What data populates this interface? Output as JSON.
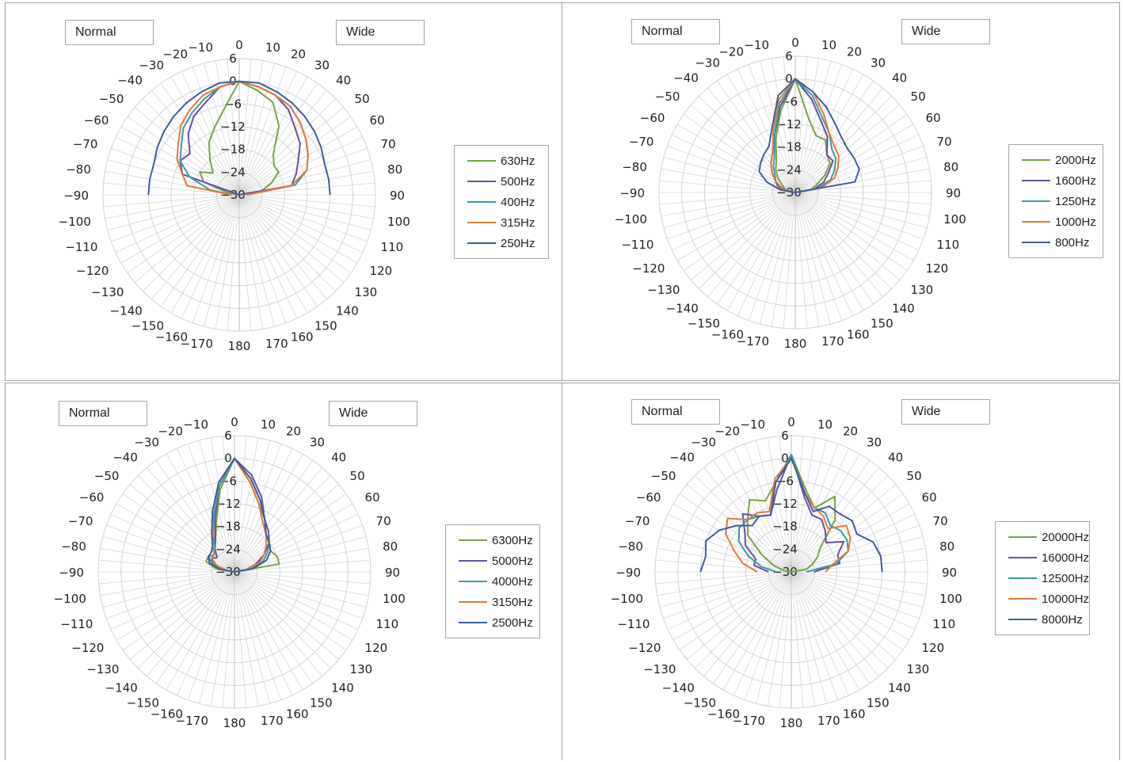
{
  "angle_labels": [
    "0",
    "10",
    "20",
    "30",
    "40",
    "50",
    "60",
    "70",
    "80",
    "90",
    "100",
    "110",
    "120",
    "130",
    "140",
    "150",
    "160",
    "170",
    "180",
    "−10",
    "−20",
    "−30",
    "−40",
    "−50",
    "−60",
    "−70",
    "−80",
    "−90",
    "−100",
    "−110",
    "−120",
    "−130",
    "−140",
    "−150",
    "−160",
    "−170"
  ],
  "ring_labels": [
    "6",
    "0",
    "−6",
    "−12",
    "−18",
    "−24",
    "−30"
  ],
  "panels": [
    {
      "normal_label": "Normal",
      "wide_label": "Wide",
      "chart_data": {
        "type": "polar-line",
        "angle_unit": "degrees",
        "r_range": [
          -30,
          6
        ],
        "series": [
          {
            "name": "630Hz",
            "color": "#77a344",
            "angles": [
              -90,
              -80,
              -70,
              -60,
              -50,
              -40,
              -30,
              -20,
              -10,
              0,
              10,
              20,
              30,
              40,
              50,
              60,
              70,
              80,
              90
            ],
            "values": [
              -30,
              -27,
              -20,
              -18,
              -21,
              -18,
              -14,
              -11,
              -7,
              0,
              -2,
              -4,
              -9,
              -16,
              -18,
              -18,
              -21,
              -24,
              -30
            ]
          },
          {
            "name": "500Hz",
            "color": "#6a4f9d",
            "angles": [
              -90,
              -80,
              -70,
              -60,
              -50,
              -40,
              -30,
              -20,
              -10,
              0,
              10,
              20,
              30,
              40,
              50,
              60,
              70,
              80,
              90
            ],
            "values": [
              -30,
              -30,
              -14,
              -12,
              -13,
              -9,
              -6,
              -4,
              -1,
              0,
              -1,
              -2,
              -4,
              -7,
              -9,
              -12,
              -14,
              -16,
              -30
            ]
          },
          {
            "name": "400Hz",
            "color": "#3b9aa8",
            "angles": [
              -90,
              -80,
              -70,
              -60,
              -50,
              -40,
              -30,
              -20,
              -10,
              0,
              10,
              20,
              30,
              40,
              50,
              60,
              70,
              80,
              90
            ],
            "values": [
              -28,
              -22,
              -16,
              -12,
              -10,
              -7,
              -5,
              -3,
              -1,
              0,
              -1,
              -2,
              -3,
              -5,
              -7,
              -9,
              -11,
              -15,
              -28
            ]
          },
          {
            "name": "315Hz",
            "color": "#e07b39",
            "angles": [
              -90,
              -80,
              -70,
              -60,
              -50,
              -40,
              -30,
              -20,
              -10,
              0,
              10,
              20,
              30,
              40,
              50,
              60,
              70,
              80,
              90
            ],
            "values": [
              -28,
              -16,
              -14,
              -11,
              -9,
              -6,
              -4,
              -2,
              -1,
              0,
              -1,
              -2,
              -3,
              -5,
              -7,
              -9,
              -11,
              -16,
              -28
            ]
          },
          {
            "name": "250Hz",
            "color": "#3d5e9c",
            "angles": [
              -90,
              -80,
              -70,
              -60,
              -50,
              -40,
              -30,
              -20,
              -10,
              0,
              10,
              20,
              30,
              40,
              50,
              60,
              70,
              80,
              90
            ],
            "values": [
              -6,
              -6,
              -6,
              -5,
              -4,
              -3,
              -2,
              -1,
              0,
              0,
              0,
              -1,
              -2,
              -3,
              -4,
              -5,
              -6,
              -6,
              -6
            ]
          }
        ]
      }
    },
    {
      "normal_label": "Normal",
      "wide_label": "Wide",
      "chart_data": {
        "type": "polar-line",
        "angle_unit": "degrees",
        "r_range": [
          -30,
          6
        ],
        "series": [
          {
            "name": "2000Hz",
            "color": "#77a344",
            "angles": [
              -90,
              -80,
              -70,
              -60,
              -50,
              -40,
              -30,
              -20,
              -10,
              0,
              10,
              20,
              30,
              40,
              50,
              60,
              70,
              80,
              90
            ],
            "values": [
              -30,
              -29,
              -27,
              -26,
              -24,
              -22,
              -20,
              -15,
              -8,
              0,
              -10,
              -14,
              -14,
              -17,
              -18,
              -21,
              -24,
              -26,
              -30
            ]
          },
          {
            "name": "1600Hz",
            "color": "#6a4f9d",
            "angles": [
              -90,
              -80,
              -70,
              -60,
              -50,
              -40,
              -30,
              -20,
              -10,
              0,
              10,
              20,
              30,
              40,
              50,
              60,
              70,
              80,
              90
            ],
            "values": [
              -30,
              -27,
              -25,
              -24,
              -22,
              -20,
              -18,
              -14,
              -7,
              0,
              -5,
              -10,
              -13,
              -17,
              -17,
              -20,
              -22,
              -25,
              -30
            ]
          },
          {
            "name": "1250Hz",
            "color": "#3b9aa8",
            "angles": [
              -90,
              -80,
              -70,
              -60,
              -50,
              -40,
              -30,
              -20,
              -10,
              0,
              10,
              20,
              30,
              40,
              50,
              60,
              70,
              80,
              90
            ],
            "values": [
              -30,
              -29,
              -26,
              -24,
              -23,
              -21,
              -19,
              -14,
              -6,
              0,
              -4,
              -9,
              -12,
              -15,
              -16,
              -18,
              -20,
              -24,
              -30
            ]
          },
          {
            "name": "1000Hz",
            "color": "#e07b39",
            "angles": [
              -90,
              -80,
              -70,
              -60,
              -50,
              -40,
              -30,
              -20,
              -10,
              0,
              10,
              20,
              30,
              40,
              50,
              60,
              70,
              80,
              90
            ],
            "values": [
              -30,
              -28,
              -26,
              -24,
              -22,
              -20,
              -18,
              -13,
              -5,
              0,
              -3,
              -8,
              -12,
              -14,
              -15,
              -17,
              -19,
              -23,
              -30
            ]
          },
          {
            "name": "800Hz",
            "color": "#3d5e9c",
            "angles": [
              -90,
              -80,
              -70,
              -60,
              -50,
              -40,
              -30,
              -20,
              -10,
              0,
              10,
              20,
              30,
              40,
              50,
              60,
              70,
              80,
              90
            ],
            "values": [
              -30,
              -26,
              -22,
              -19,
              -18,
              -17,
              -16,
              -12,
              -4,
              0,
              -3,
              -6,
              -9,
              -11,
              -12,
              -12,
              -12,
              -14,
              -30
            ]
          }
        ]
      }
    },
    {
      "normal_label": "Normal",
      "wide_label": "Wide",
      "chart_data": {
        "type": "polar-line",
        "angle_unit": "degrees",
        "r_range": [
          -30,
          6
        ],
        "series": [
          {
            "name": "6300Hz",
            "color": "#77a344",
            "angles": [
              -90,
              -80,
              -70,
              -60,
              -50,
              -40,
              -30,
              -20,
              -10,
              0,
              10,
              20,
              30,
              40,
              50,
              60,
              70,
              80,
              90
            ],
            "values": [
              -30,
              -25,
              -22,
              -22,
              -23,
              -22,
              -20,
              -16,
              -8,
              0,
              -6,
              -11,
              -14,
              -17,
              -18,
              -19,
              -18,
              -18,
              -30
            ]
          },
          {
            "name": "5000Hz",
            "color": "#6a4f9d",
            "angles": [
              -90,
              -80,
              -70,
              -60,
              -50,
              -40,
              -30,
              -20,
              -10,
              0,
              10,
              20,
              30,
              40,
              50,
              60,
              70,
              80,
              90
            ],
            "values": [
              -30,
              -28,
              -24,
              -23,
              -24,
              -22,
              -20,
              -15,
              -7,
              0,
              -4,
              -9,
              -14,
              -16,
              -18,
              -21,
              -24,
              -27,
              -30
            ]
          },
          {
            "name": "4000Hz",
            "color": "#3b9aa8",
            "angles": [
              -90,
              -80,
              -70,
              -60,
              -50,
              -40,
              -30,
              -20,
              -10,
              0,
              10,
              20,
              30,
              40,
              50,
              60,
              70,
              80,
              90
            ],
            "values": [
              -30,
              -27,
              -24,
              -22,
              -23,
              -22,
              -19,
              -14,
              -7,
              0,
              -5,
              -10,
              -14,
              -17,
              -18,
              -20,
              -22,
              -26,
              -30
            ]
          },
          {
            "name": "3150Hz",
            "color": "#e07b39",
            "angles": [
              -90,
              -80,
              -70,
              -60,
              -50,
              -40,
              -30,
              -20,
              -10,
              0,
              10,
              20,
              30,
              40,
              50,
              60,
              70,
              80,
              90
            ],
            "values": [
              -30,
              -28,
              -25,
              -23,
              -23,
              -21,
              -19,
              -13,
              -6,
              0,
              -6,
              -11,
              -15,
              -17,
              -19,
              -21,
              -23,
              -27,
              -30
            ]
          },
          {
            "name": "2500Hz",
            "color": "#3d5e9c",
            "angles": [
              -90,
              -80,
              -70,
              -60,
              -50,
              -40,
              -30,
              -20,
              -10,
              0,
              10,
              20,
              30,
              40,
              50,
              60,
              70,
              80,
              90
            ],
            "values": [
              -30,
              -26,
              -23,
              -22,
              -22,
              -21,
              -18,
              -13,
              -6,
              0,
              -5,
              -10,
              -14,
              -17,
              -18,
              -19,
              -21,
              -25,
              -30
            ]
          }
        ]
      }
    },
    {
      "normal_label": "Normal",
      "wide_label": "Wide",
      "chart_data": {
        "type": "polar-line",
        "angle_unit": "degrees",
        "r_range": [
          -30,
          6
        ],
        "series": [
          {
            "name": "20000Hz",
            "color": "#77a344",
            "angles": [
              -90,
              -80,
              -70,
              -60,
              -50,
              -40,
              -30,
              -20,
              -10,
              0,
              10,
              20,
              30,
              40,
              50,
              60,
              70,
              80,
              90
            ],
            "values": [
              -30,
              -28,
              -25,
              -21,
              -15,
              -12,
              -8,
              -10,
              -6,
              1,
              -8,
              -12,
              -7,
              -12,
              -20,
              -22,
              -24,
              -26,
              -30
            ]
          },
          {
            "name": "16000Hz",
            "color": "#6a4f9d",
            "angles": [
              -90,
              -80,
              -70,
              -60,
              -50,
              -40,
              -30,
              -20,
              -10,
              0,
              10,
              20,
              30,
              40,
              50,
              60,
              70,
              80,
              90
            ],
            "values": [
              -24,
              -20,
              -20,
              -16,
              -14,
              -10,
              -13,
              -14,
              -8,
              1,
              -10,
              -14,
              -14,
              -16,
              -18,
              -14,
              -17,
              -17,
              -24
            ]
          },
          {
            "name": "12500Hz",
            "color": "#3b9aa8",
            "angles": [
              -90,
              -80,
              -70,
              -60,
              -50,
              -40,
              -30,
              -20,
              -10,
              0,
              10,
              20,
              30,
              40,
              50,
              60,
              70,
              80,
              90
            ],
            "values": [
              -26,
              -22,
              -18,
              -14,
              -12,
              -12,
              -13,
              -14,
              -6,
              1,
              -9,
              -12,
              -12,
              -14,
              -13,
              -13,
              -14,
              -18,
              -26
            ]
          },
          {
            "name": "10000Hz",
            "color": "#e07b39",
            "angles": [
              -90,
              -80,
              -70,
              -60,
              -50,
              -40,
              -30,
              -20,
              -10,
              0,
              10,
              20,
              30,
              40,
              50,
              60,
              70,
              80,
              90
            ],
            "values": [
              -21,
              -17,
              -14,
              -10,
              -8,
              -12,
              -12,
              -13,
              -5,
              0,
              -9,
              -12,
              -13,
              -15,
              -11,
              -12,
              -14,
              -19,
              -21
            ]
          },
          {
            "name": "8000Hz",
            "color": "#3d5e9c",
            "angles": [
              -90,
              -80,
              -70,
              -60,
              -50,
              -40,
              -30,
              -20,
              -10,
              0,
              10,
              20,
              30,
              40,
              50,
              60,
              70,
              80,
              90
            ],
            "values": [
              -6,
              -7,
              -6,
              -8,
              -11,
              -14,
              -13,
              -14,
              -6,
              0,
              -9,
              -13,
              -10,
              -10,
              -9,
              -10,
              -7,
              -6,
              -6
            ]
          }
        ]
      }
    }
  ]
}
